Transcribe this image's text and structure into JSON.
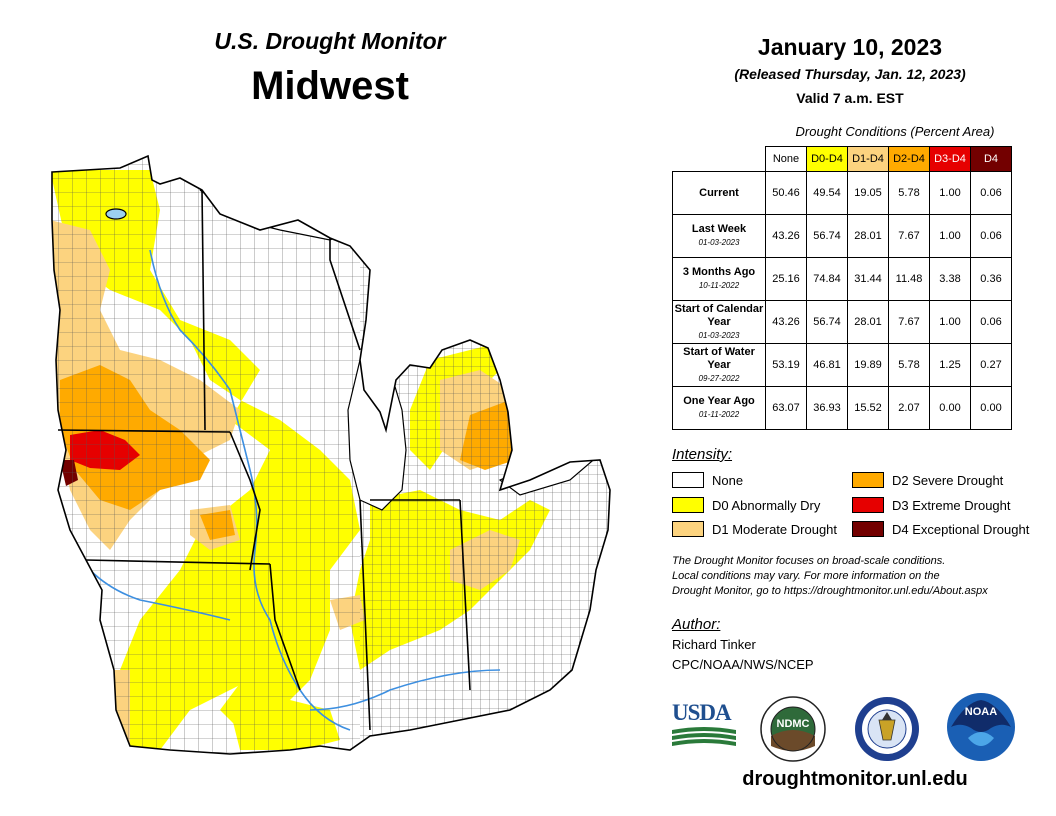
{
  "header": {
    "subtitle": "U.S. Drought Monitor",
    "region": "Midwest",
    "date": "January 10, 2023",
    "released": "(Released Thursday, Jan. 12, 2023)",
    "valid": "Valid 7 a.m. EST"
  },
  "table": {
    "caption": "Drought Conditions (Percent Area)",
    "columns": [
      "None",
      "D0-D4",
      "D1-D4",
      "D2-D4",
      "D3-D4",
      "D4"
    ],
    "column_colors": [
      "#ffffff",
      "#ffff00",
      "#fcd37f",
      "#ffaa00",
      "#e60000",
      "#730000"
    ],
    "rows": [
      {
        "label": "Current",
        "date": "",
        "values": [
          "50.46",
          "49.54",
          "19.05",
          "5.78",
          "1.00",
          "0.06"
        ]
      },
      {
        "label": "Last Week",
        "date": "01-03-2023",
        "values": [
          "43.26",
          "56.74",
          "28.01",
          "7.67",
          "1.00",
          "0.06"
        ]
      },
      {
        "label": "3 Months Ago",
        "date": "10-11-2022",
        "values": [
          "25.16",
          "74.84",
          "31.44",
          "11.48",
          "3.38",
          "0.36"
        ]
      },
      {
        "label": "Start of Calendar Year",
        "date": "01-03-2023",
        "values": [
          "43.26",
          "56.74",
          "28.01",
          "7.67",
          "1.00",
          "0.06"
        ]
      },
      {
        "label": "Start of Water Year",
        "date": "09-27-2022",
        "values": [
          "53.19",
          "46.81",
          "19.89",
          "5.78",
          "1.25",
          "0.27"
        ]
      },
      {
        "label": "One Year Ago",
        "date": "01-11-2022",
        "values": [
          "63.07",
          "36.93",
          "15.52",
          "2.07",
          "0.00",
          "0.00"
        ]
      }
    ]
  },
  "legend": {
    "title": "Intensity:",
    "items": [
      {
        "label": "None",
        "color": "#ffffff"
      },
      {
        "label": "D0 Abnormally Dry",
        "color": "#ffff00"
      },
      {
        "label": "D1 Moderate Drought",
        "color": "#fcd37f"
      },
      {
        "label": "D2 Severe Drought",
        "color": "#ffaa00"
      },
      {
        "label": "D3 Extreme Drought",
        "color": "#e60000"
      },
      {
        "label": "D4 Exceptional Drought",
        "color": "#730000"
      }
    ]
  },
  "note": {
    "line1": "The Drought Monitor focuses on broad-scale conditions.",
    "line2": "Local conditions may vary. For more information on the",
    "line3": "Drought Monitor, go to https://droughtmonitor.unl.edu/About.aspx"
  },
  "author": {
    "title": "Author:",
    "name": "Richard Tinker",
    "org": "CPC/NOAA/NWS/NCEP"
  },
  "logos": {
    "usda": "USDA",
    "ndmc": "NDMC",
    "ndmc_icon": "ndmc-seal-icon",
    "noaa": "NOAA",
    "noaa_icon": "noaa-logo-icon",
    "doc_icon": "commerce-seal-icon"
  },
  "footer": {
    "url": "droughtmonitor.unl.edu"
  },
  "map": {
    "water_color": "#9cd0f0",
    "river_color": "#3d8fe0"
  }
}
